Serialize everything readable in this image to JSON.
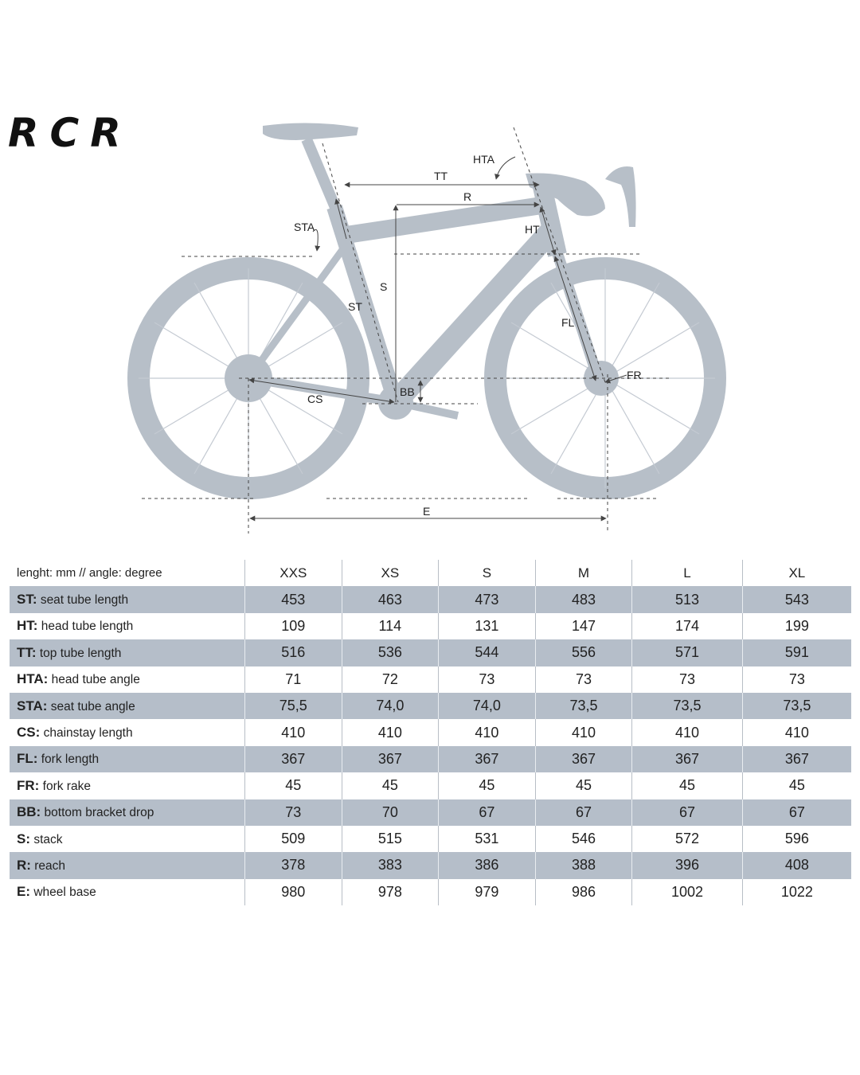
{
  "brand": "RCR",
  "diagram_labels": {
    "hta": "HTA",
    "tt": "TT",
    "r": "R",
    "ht": "HT",
    "sta": "STA",
    "s": "S",
    "st": "ST",
    "fl": "FL",
    "fr": "FR",
    "bb": "BB",
    "cs": "CS",
    "e": "E"
  },
  "table": {
    "unit_note": "lenght: mm // angle: degree",
    "sizes": [
      "XXS",
      "XS",
      "S",
      "M",
      "L",
      "XL"
    ],
    "rows": [
      {
        "abbr": "ST:",
        "name": "seat tube length",
        "values": [
          "453",
          "463",
          "473",
          "483",
          "513",
          "543"
        ]
      },
      {
        "abbr": "HT:",
        "name": "head tube length",
        "values": [
          "109",
          "114",
          "131",
          "147",
          "174",
          "199"
        ]
      },
      {
        "abbr": "TT:",
        "name": "top tube length",
        "values": [
          "516",
          "536",
          "544",
          "556",
          "571",
          "591"
        ]
      },
      {
        "abbr": "HTA:",
        "name": "head tube angle",
        "values": [
          "71",
          "72",
          "73",
          "73",
          "73",
          "73"
        ]
      },
      {
        "abbr": "STA:",
        "name": "seat tube angle",
        "values": [
          "75,5",
          "74,0",
          "74,0",
          "73,5",
          "73,5",
          "73,5"
        ]
      },
      {
        "abbr": "CS:",
        "name": "chainstay length",
        "values": [
          "410",
          "410",
          "410",
          "410",
          "410",
          "410"
        ]
      },
      {
        "abbr": "FL:",
        "name": "fork length",
        "values": [
          "367",
          "367",
          "367",
          "367",
          "367",
          "367"
        ]
      },
      {
        "abbr": "FR:",
        "name": "fork rake",
        "values": [
          "45",
          "45",
          "45",
          "45",
          "45",
          "45"
        ]
      },
      {
        "abbr": "BB:",
        "name": "bottom bracket drop",
        "values": [
          "73",
          "70",
          "67",
          "67",
          "67",
          "67"
        ]
      },
      {
        "abbr": "S:",
        "name": "stack",
        "values": [
          "509",
          "515",
          "531",
          "546",
          "572",
          "596"
        ]
      },
      {
        "abbr": "R:",
        "name": "reach",
        "values": [
          "378",
          "383",
          "386",
          "388",
          "396",
          "408"
        ]
      },
      {
        "abbr": "E:",
        "name": "wheel base",
        "values": [
          "980",
          "978",
          "979",
          "986",
          "1002",
          "1022"
        ]
      }
    ]
  },
  "colors": {
    "bike": "#b7bfc8",
    "row_shade": "#b5bec9",
    "text": "#222222"
  }
}
